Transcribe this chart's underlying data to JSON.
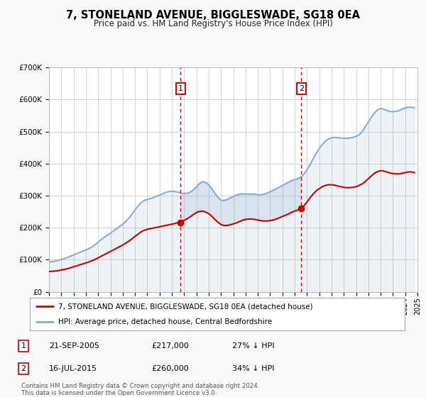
{
  "title": "7, STONELAND AVENUE, BIGGLESWADE, SG18 0EA",
  "subtitle": "Price paid vs. HM Land Registry's House Price Index (HPI)",
  "bg_color": "#f9f9f9",
  "plot_bg_color": "#ffffff",
  "grid_color": "#cccccc",
  "red_line_color": "#cc0000",
  "blue_line_color": "#88aacc",
  "marker1_x": 2005.72,
  "marker1_y": 217000,
  "marker2_x": 2015.54,
  "marker2_y": 260000,
  "marker1_label": "21-SEP-2005",
  "marker1_price": "£217,000",
  "marker1_hpi": "27% ↓ HPI",
  "marker2_label": "16-JUL-2015",
  "marker2_price": "£260,000",
  "marker2_hpi": "34% ↓ HPI",
  "legend_line1": "7, STONELAND AVENUE, BIGGLESWADE, SG18 0EA (detached house)",
  "legend_line2": "HPI: Average price, detached house, Central Bedfordshire",
  "footnote1": "Contains HM Land Registry data © Crown copyright and database right 2024.",
  "footnote2": "This data is licensed under the Open Government Licence v3.0.",
  "xmin": 1995.0,
  "xmax": 2025.0,
  "ymin": 0,
  "ymax": 700000,
  "yticks": [
    0,
    100000,
    200000,
    300000,
    400000,
    500000,
    600000,
    700000
  ],
  "ytick_labels": [
    "£0",
    "£100K",
    "£200K",
    "£300K",
    "£400K",
    "£500K",
    "£600K",
    "£700K"
  ],
  "hpi_years": [
    1995.0,
    1995.25,
    1995.5,
    1995.75,
    1996.0,
    1996.25,
    1996.5,
    1996.75,
    1997.0,
    1997.25,
    1997.5,
    1997.75,
    1998.0,
    1998.25,
    1998.5,
    1998.75,
    1999.0,
    1999.25,
    1999.5,
    1999.75,
    2000.0,
    2000.25,
    2000.5,
    2000.75,
    2001.0,
    2001.25,
    2001.5,
    2001.75,
    2002.0,
    2002.25,
    2002.5,
    2002.75,
    2003.0,
    2003.25,
    2003.5,
    2003.75,
    2004.0,
    2004.25,
    2004.5,
    2004.75,
    2005.0,
    2005.25,
    2005.5,
    2005.75,
    2006.0,
    2006.25,
    2006.5,
    2006.75,
    2007.0,
    2007.25,
    2007.5,
    2007.75,
    2008.0,
    2008.25,
    2008.5,
    2008.75,
    2009.0,
    2009.25,
    2009.5,
    2009.75,
    2010.0,
    2010.25,
    2010.5,
    2010.75,
    2011.0,
    2011.25,
    2011.5,
    2011.75,
    2012.0,
    2012.25,
    2012.5,
    2012.75,
    2013.0,
    2013.25,
    2013.5,
    2013.75,
    2014.0,
    2014.25,
    2014.5,
    2014.75,
    2015.0,
    2015.25,
    2015.5,
    2015.75,
    2016.0,
    2016.25,
    2016.5,
    2016.75,
    2017.0,
    2017.25,
    2017.5,
    2017.75,
    2018.0,
    2018.25,
    2018.5,
    2018.75,
    2019.0,
    2019.25,
    2019.5,
    2019.75,
    2020.0,
    2020.25,
    2020.5,
    2020.75,
    2021.0,
    2021.25,
    2021.5,
    2021.75,
    2022.0,
    2022.25,
    2022.5,
    2022.75,
    2023.0,
    2023.25,
    2023.5,
    2023.75,
    2024.0,
    2024.25,
    2024.5,
    2024.75
  ],
  "hpi_values": [
    93000,
    94000,
    96000,
    98000,
    101000,
    104000,
    107000,
    111000,
    115000,
    119000,
    123000,
    127000,
    131000,
    135000,
    140000,
    147000,
    155000,
    163000,
    170000,
    177000,
    183000,
    190000,
    197000,
    204000,
    211000,
    220000,
    230000,
    242000,
    256000,
    268000,
    278000,
    285000,
    288000,
    291000,
    294000,
    298000,
    302000,
    306000,
    310000,
    313000,
    314000,
    313000,
    311000,
    308000,
    307000,
    308000,
    311000,
    318000,
    328000,
    338000,
    344000,
    342000,
    334000,
    322000,
    308000,
    295000,
    286000,
    285000,
    288000,
    293000,
    298000,
    302000,
    305000,
    306000,
    305000,
    305000,
    305000,
    305000,
    303000,
    303000,
    305000,
    308000,
    312000,
    317000,
    322000,
    327000,
    332000,
    337000,
    342000,
    347000,
    350000,
    353000,
    358000,
    367000,
    380000,
    397000,
    415000,
    432000,
    447000,
    460000,
    470000,
    477000,
    481000,
    482000,
    481000,
    480000,
    479000,
    479000,
    480000,
    482000,
    485000,
    490000,
    500000,
    515000,
    530000,
    545000,
    558000,
    568000,
    572000,
    570000,
    566000,
    563000,
    562000,
    563000,
    566000,
    570000,
    574000,
    576000,
    576000,
    574000
  ],
  "red_years": [
    1995.0,
    1995.25,
    1995.5,
    1995.75,
    1996.0,
    1996.25,
    1996.5,
    1996.75,
    1997.0,
    1997.25,
    1997.5,
    1997.75,
    1998.0,
    1998.25,
    1998.5,
    1998.75,
    1999.0,
    1999.25,
    1999.5,
    1999.75,
    2000.0,
    2000.25,
    2000.5,
    2000.75,
    2001.0,
    2001.25,
    2001.5,
    2001.75,
    2002.0,
    2002.25,
    2002.5,
    2002.75,
    2003.0,
    2003.25,
    2003.5,
    2003.75,
    2004.0,
    2004.25,
    2004.5,
    2004.75,
    2005.0,
    2005.25,
    2005.5,
    2005.75,
    2006.0,
    2006.25,
    2006.5,
    2006.75,
    2007.0,
    2007.25,
    2007.5,
    2007.75,
    2008.0,
    2008.25,
    2008.5,
    2008.75,
    2009.0,
    2009.25,
    2009.5,
    2009.75,
    2010.0,
    2010.25,
    2010.5,
    2010.75,
    2011.0,
    2011.25,
    2011.5,
    2011.75,
    2012.0,
    2012.25,
    2012.5,
    2012.75,
    2013.0,
    2013.25,
    2013.5,
    2013.75,
    2014.0,
    2014.25,
    2014.5,
    2014.75,
    2015.0,
    2015.25,
    2015.5,
    2015.75,
    2016.0,
    2016.25,
    2016.5,
    2016.75,
    2017.0,
    2017.25,
    2017.5,
    2017.75,
    2018.0,
    2018.25,
    2018.5,
    2018.75,
    2019.0,
    2019.25,
    2019.5,
    2019.75,
    2020.0,
    2020.25,
    2020.5,
    2020.75,
    2021.0,
    2021.25,
    2021.5,
    2021.75,
    2022.0,
    2022.25,
    2022.5,
    2022.75,
    2023.0,
    2023.25,
    2023.5,
    2023.75,
    2024.0,
    2024.25,
    2024.5,
    2024.75
  ],
  "red_values": [
    63000,
    64000,
    65000,
    66000,
    68000,
    70000,
    72000,
    75000,
    78000,
    81000,
    84000,
    87000,
    90000,
    93000,
    97000,
    101000,
    106000,
    111000,
    116000,
    121000,
    126000,
    131000,
    136000,
    141000,
    146000,
    152000,
    158000,
    165000,
    173000,
    180000,
    187000,
    192000,
    195000,
    197000,
    199000,
    201000,
    203000,
    205000,
    207000,
    209000,
    211000,
    213000,
    216000,
    219000,
    223000,
    228000,
    234000,
    241000,
    247000,
    251000,
    252000,
    249000,
    244000,
    236000,
    226000,
    217000,
    210000,
    207000,
    207000,
    209000,
    212000,
    215000,
    219000,
    223000,
    226000,
    227000,
    227000,
    226000,
    224000,
    222000,
    221000,
    221000,
    222000,
    224000,
    227000,
    231000,
    235000,
    239000,
    243000,
    248000,
    252000,
    255000,
    260000,
    268000,
    280000,
    293000,
    305000,
    315000,
    322000,
    328000,
    332000,
    334000,
    334000,
    333000,
    330000,
    328000,
    326000,
    325000,
    325000,
    326000,
    328000,
    332000,
    337000,
    344000,
    353000,
    362000,
    370000,
    375000,
    378000,
    377000,
    374000,
    371000,
    369000,
    368000,
    368000,
    370000,
    372000,
    374000,
    374000,
    372000
  ]
}
